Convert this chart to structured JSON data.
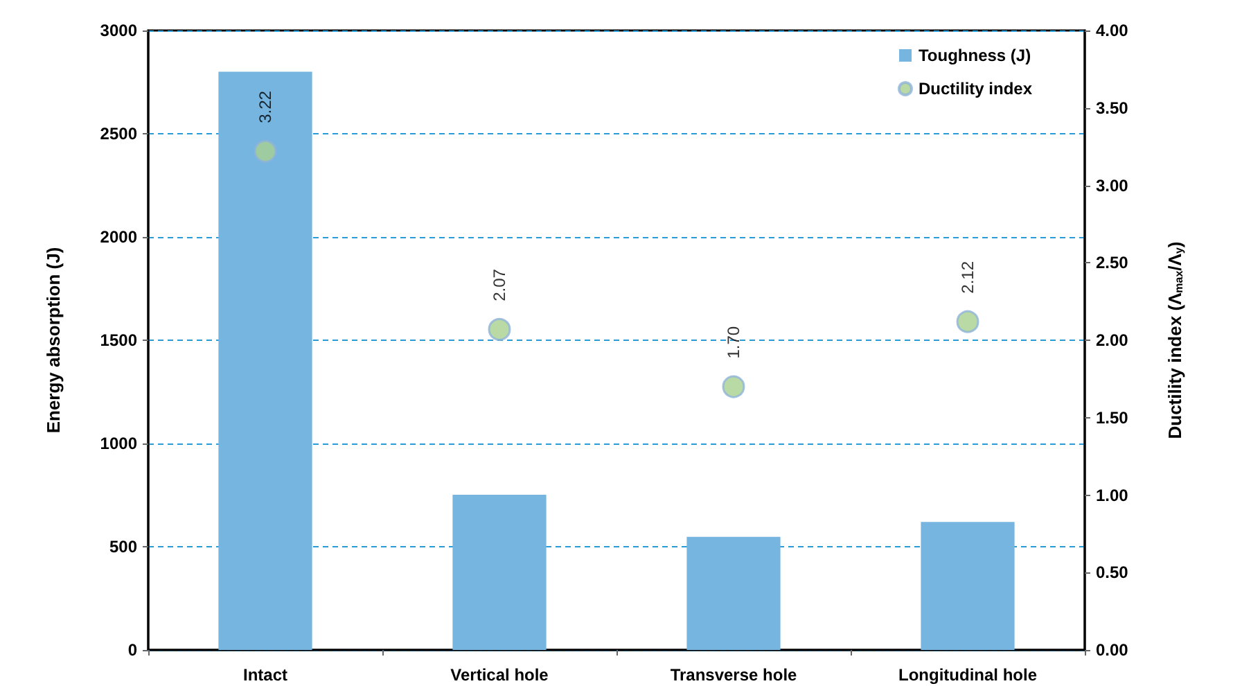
{
  "chart_data": {
    "type": "bar",
    "categories": [
      "Intact",
      "Vertical hole",
      "Transverse hole",
      "Longitudinal hole"
    ],
    "ylabel": "Energy absorption (J)",
    "y2label": "Ductility index (Λ$_{max}$/Λ$_{y}$)",
    "series": [
      {
        "name": "Toughness (J)",
        "color": "#75b5df",
        "values": [
          2800,
          752,
          548,
          620
        ]
      },
      {
        "name": "Ductility index",
        "type": "scatter",
        "axis": "y2",
        "color": "#a9d18e",
        "values": [
          3.22,
          2.07,
          1.7,
          2.12
        ],
        "value_labels": [
          "3.22",
          "2.07",
          "1.70",
          "2.12"
        ]
      }
    ],
    "ylim": [
      0,
      3000
    ],
    "yticks": [
      0,
      500,
      1000,
      1500,
      2000,
      2500,
      3000
    ],
    "y2lim": [
      0,
      4
    ],
    "y2ticks": [
      {
        "value": 0,
        "label": "0.00"
      },
      {
        "value": 0.5,
        "label": "0.50"
      },
      {
        "value": 1,
        "label": "1.00"
      },
      {
        "value": 1.5,
        "label": "1.50"
      },
      {
        "value": 2,
        "label": "2.00"
      },
      {
        "value": 2.5,
        "label": "2.50"
      },
      {
        "value": 3,
        "label": "3.00"
      },
      {
        "value": 3.5,
        "label": "3.50"
      },
      {
        "value": 4,
        "label": "4.00"
      }
    ],
    "grid": "y",
    "legend": "top right",
    "marker": "circle"
  }
}
